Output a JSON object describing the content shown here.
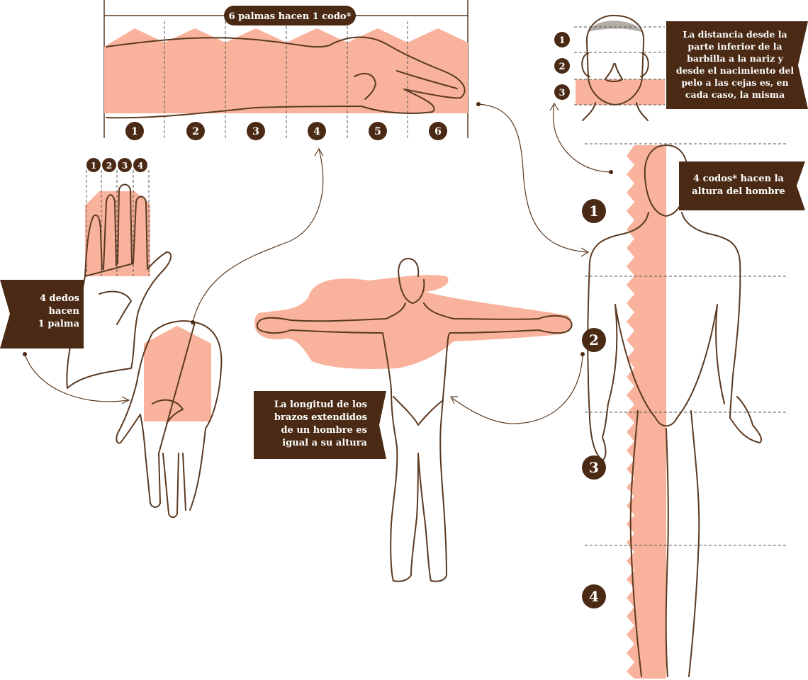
{
  "colors": {
    "brown": "#4a2a14",
    "salmon": "#f9b29b",
    "line": "#5b3a22",
    "dash": "#555555"
  },
  "elbow": {
    "title": "6 palmas hacen 1 codo*",
    "palm_numbers": [
      "1",
      "2",
      "3",
      "4",
      "5",
      "6"
    ]
  },
  "palm": {
    "finger_numbers": [
      "1",
      "2",
      "3",
      "4"
    ],
    "label_lines": [
      "4 dedos",
      "hacen",
      "1 palma"
    ]
  },
  "face": {
    "numbers": [
      "1",
      "2",
      "3"
    ],
    "label_lines": [
      "La distancia desde la",
      "parte inferior de la",
      "barbilla a la nariz y",
      "desde el nacimiento del",
      "pelo a las cejas es, en",
      "cada caso, la misma"
    ]
  },
  "height": {
    "label_lines": [
      "4 codos* hacen la",
      "altura del hombre"
    ],
    "numbers": [
      "1",
      "2",
      "3",
      "4"
    ]
  },
  "arms": {
    "label_lines": [
      "La longitud de los",
      "brazos extendidos",
      "de un hombre es",
      "igual a su altura"
    ]
  }
}
